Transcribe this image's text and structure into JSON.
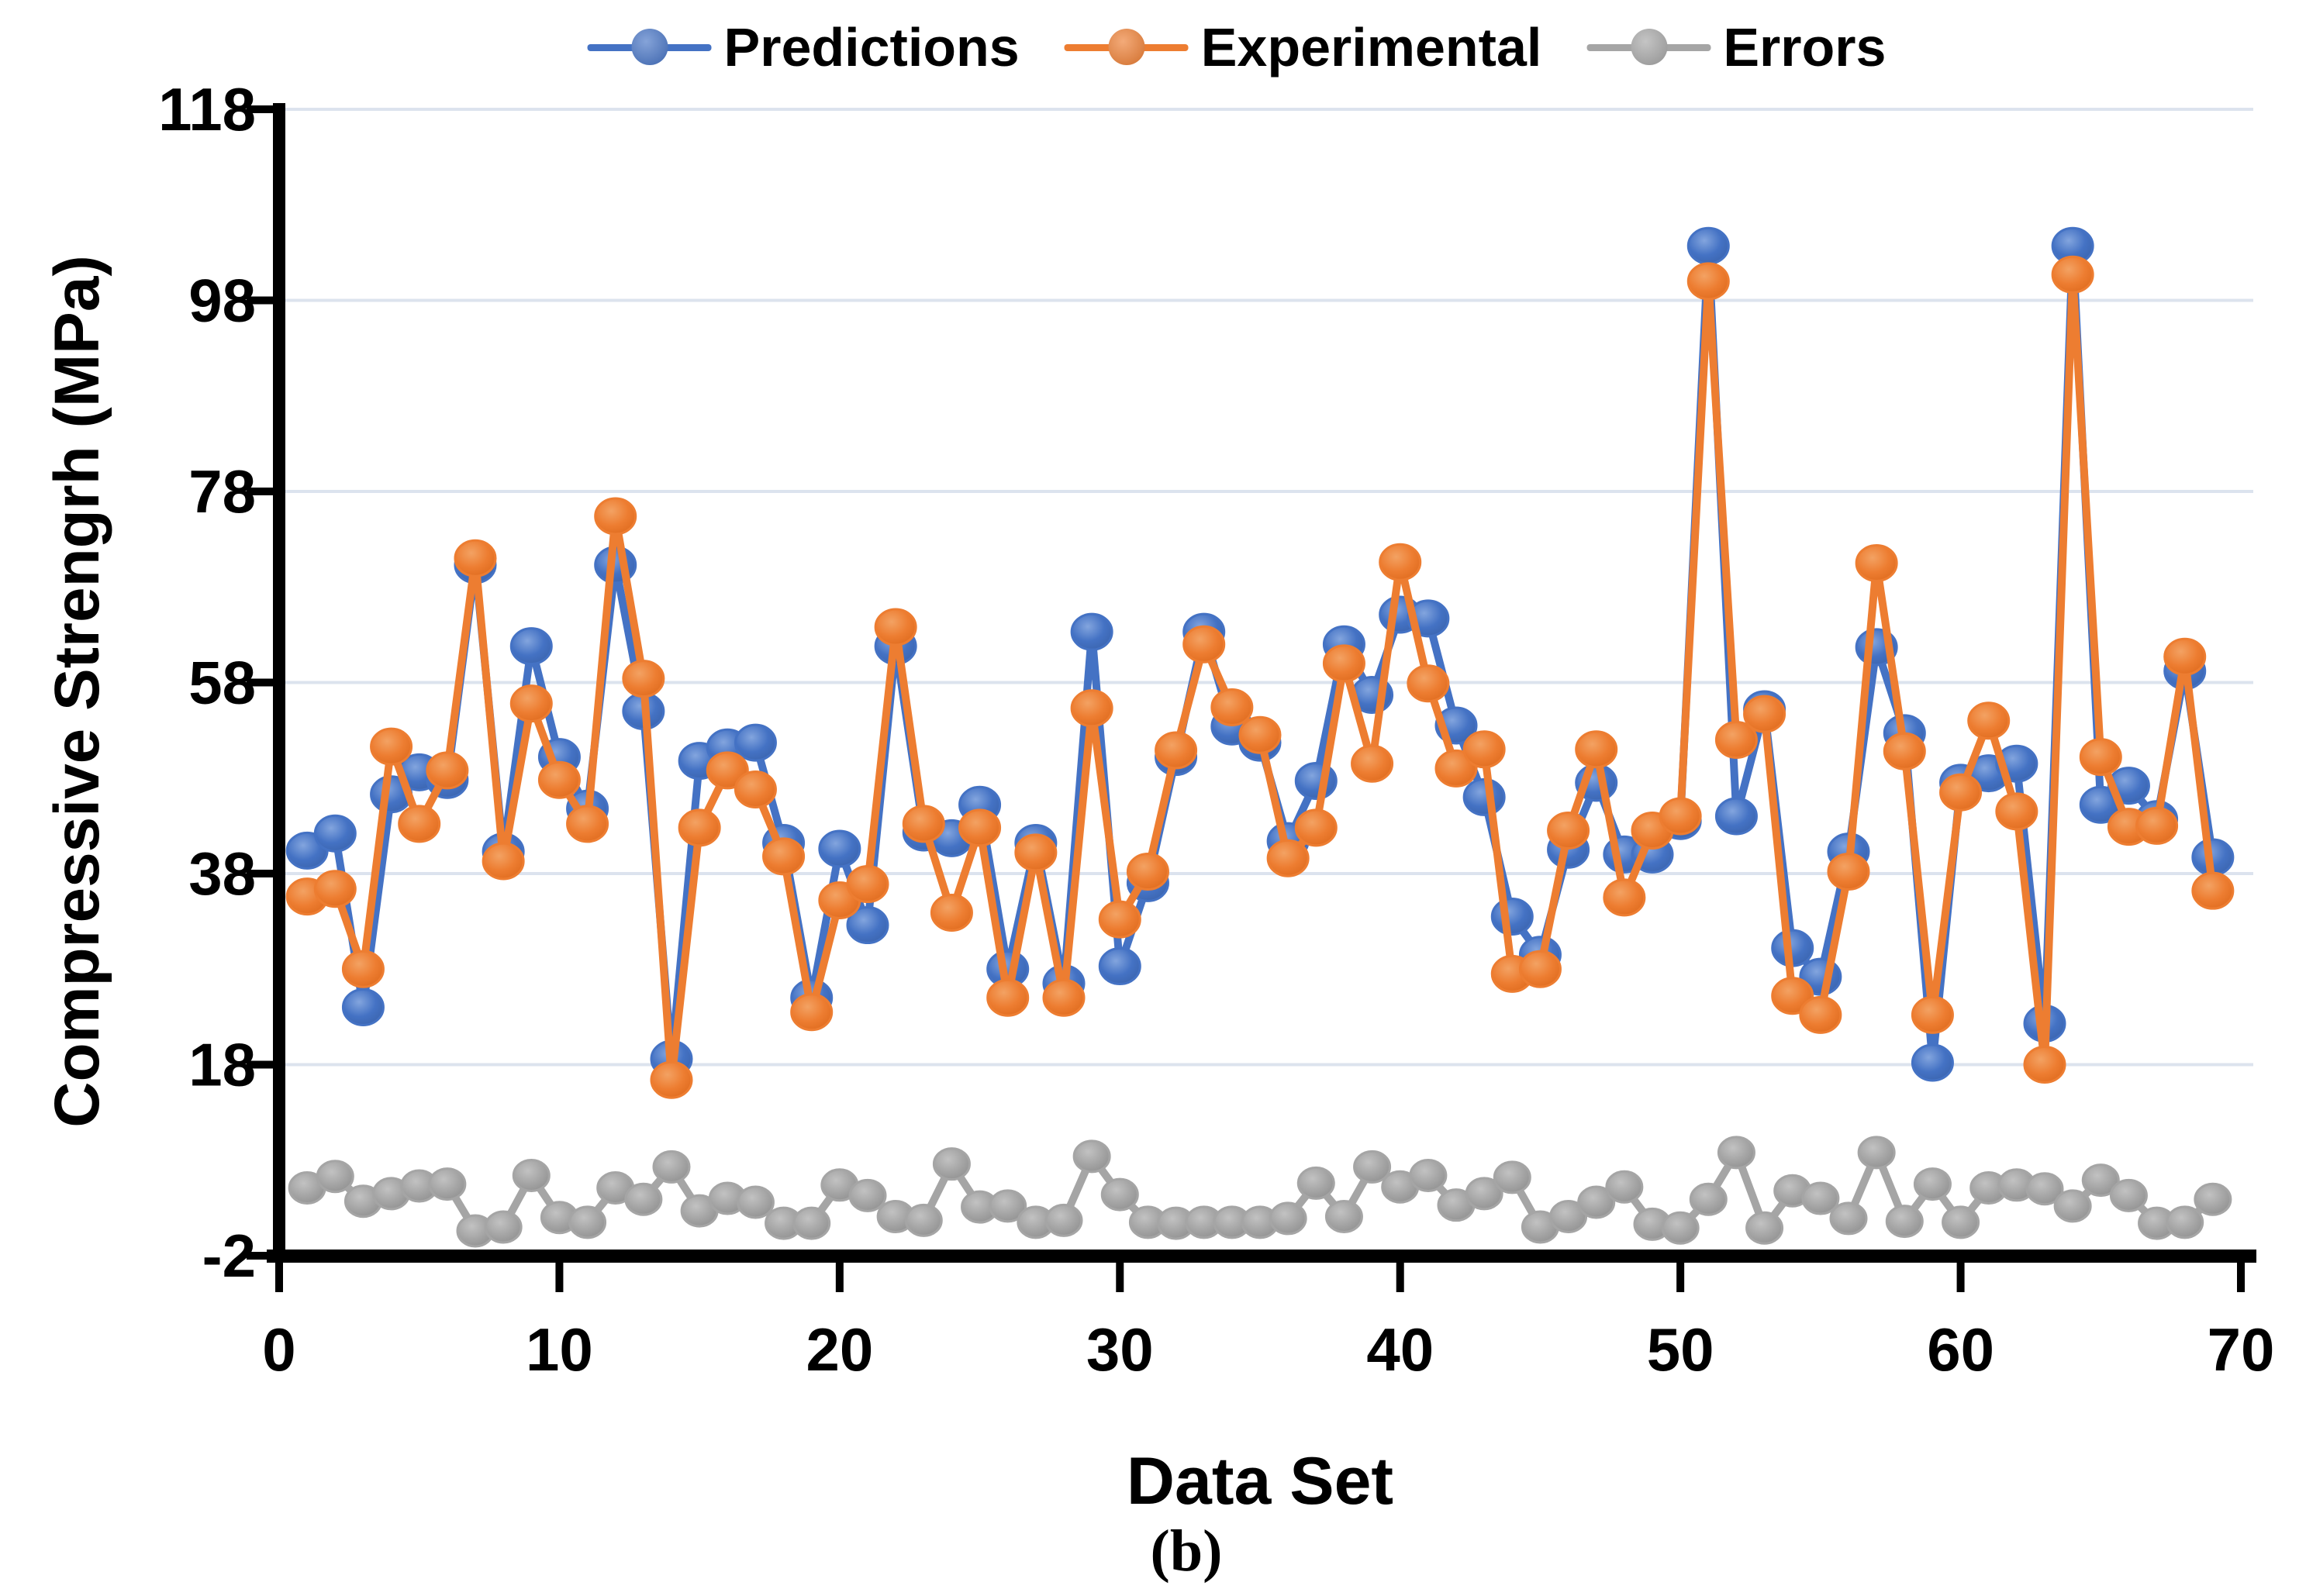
{
  "figure": {
    "y_axis_title": "Compressive Strengrh (MPa)",
    "x_axis_title": "Data Set",
    "caption": "(b)"
  },
  "colors": {
    "predictions": "#4472C4",
    "experimental": "#ED7D31",
    "errors": "#A5A5A5",
    "gridline": "#DCE3EE",
    "axis": "#000000",
    "text": "#000000"
  },
  "chart_data": {
    "type": "line",
    "title": "",
    "xlabel": "Data Set",
    "ylabel": "Compressive Strengrh (MPa)",
    "xlim": [
      0,
      70
    ],
    "ylim": [
      -2,
      118
    ],
    "x_ticks": [
      0,
      10,
      20,
      30,
      40,
      50,
      60,
      70
    ],
    "y_ticks": [
      118,
      98,
      78,
      58,
      38,
      18,
      -2
    ],
    "grid": "horizontal",
    "legend_position": "top",
    "x": [
      1,
      2,
      3,
      4,
      5,
      6,
      7,
      8,
      9,
      10,
      11,
      12,
      13,
      14,
      15,
      16,
      17,
      18,
      19,
      20,
      21,
      22,
      23,
      24,
      25,
      26,
      27,
      28,
      29,
      30,
      31,
      32,
      33,
      34,
      35,
      36,
      37,
      38,
      39,
      40,
      41,
      42,
      43,
      44,
      45,
      46,
      47,
      48,
      49,
      50,
      51,
      52,
      53,
      54,
      55,
      56,
      57,
      58,
      59,
      60,
      61,
      62,
      63,
      64,
      65,
      66,
      67,
      68,
      69
    ],
    "series": [
      {
        "name": "Predictions",
        "color": "#4472C4",
        "values": [
          40.4,
          42.2,
          24,
          46.3,
          48.6,
          47.8,
          70.3,
          40.3,
          61.8,
          50.2,
          44.8,
          70.3,
          55,
          18.6,
          49.8,
          51.2,
          51.7,
          41.2,
          25,
          40.6,
          32.6,
          61.8,
          42.3,
          41.7,
          45.2,
          28,
          41.2,
          26.5,
          63.3,
          28.3,
          37,
          50.2,
          63.3,
          53.4,
          51.7,
          41.4,
          47.7,
          62,
          56.7,
          65.1,
          64.7,
          53.5,
          46,
          33.5,
          29.5,
          40.5,
          47.5,
          40,
          40,
          43.5,
          103.7,
          44,
          55.2,
          30.2,
          27.2,
          40.3,
          61.7,
          52.7,
          18.2,
          47.5,
          48.5,
          49.5,
          22.3,
          103.7,
          45.2,
          47.2,
          43.7,
          59.2,
          39.7
        ]
      },
      {
        "name": "Experimental",
        "color": "#ED7D31",
        "values": [
          35.6,
          36.4,
          28,
          51.3,
          43.2,
          48.8,
          71,
          39.3,
          55.8,
          47.8,
          43.2,
          75.4,
          58.4,
          16.4,
          42.8,
          48.8,
          46.8,
          39.8,
          23.5,
          35.2,
          36.9,
          63.8,
          43.2,
          33.9,
          42.8,
          25,
          40.2,
          25,
          55.3,
          33.2,
          38.2,
          50.9,
          62,
          55.4,
          52.5,
          39.6,
          42.8,
          60,
          49.5,
          70.6,
          57.9,
          49,
          51,
          27.5,
          28,
          42.5,
          51,
          35.5,
          42.5,
          44,
          100,
          52,
          54.7,
          25.2,
          23.2,
          38.2,
          70.5,
          50.8,
          23.2,
          46.5,
          54,
          44.5,
          18,
          100.7,
          50.2,
          42.9,
          43,
          60.7,
          36.2
        ]
      },
      {
        "name": "Errors",
        "color": "#A5A5A5",
        "values": [
          5.1,
          6.3,
          3.7,
          4.5,
          5.3,
          5.5,
          0.6,
          1,
          6.4,
          2,
          1.5,
          5.1,
          3.9,
          7.3,
          2.7,
          4,
          3.6,
          1.4,
          1.4,
          5.4,
          4.3,
          2.1,
          1.7,
          7.6,
          3.1,
          3.2,
          1.5,
          1.7,
          8.4,
          4.4,
          1.5,
          1.4,
          1.5,
          1.5,
          1.5,
          1.9,
          5.6,
          2.1,
          7.3,
          5.2,
          6.4,
          3.3,
          4.5,
          6.2,
          1,
          2.1,
          3.6,
          5.2,
          1.3,
          0.9,
          3.9,
          8.8,
          0.9,
          4.8,
          4,
          1.9,
          8.8,
          1.6,
          5.5,
          1.5,
          5.1,
          5.4,
          5,
          3.2,
          5.9,
          4.3,
          1.4,
          1.5,
          3.9
        ]
      }
    ]
  }
}
